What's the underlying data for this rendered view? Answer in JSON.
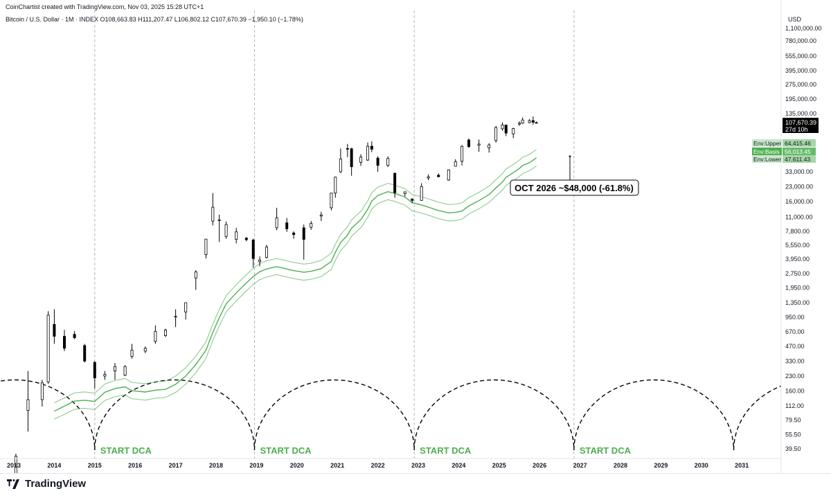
{
  "header": {
    "credit": "CoinChartist created with TradingView.com, Nov 03, 2025 15:28 UTC+1",
    "symbol_line": "Bitcoin / U.S. Dollar · 1M · INDEX  O108,663.83  H111,207.47  L106,802.12  C107,670.39  −1,950.10 (−1.78%)"
  },
  "watermark": {
    "text": "TradingView"
  },
  "chart_data": {
    "type": "candlestick",
    "currency_label": "USD",
    "price_scale": "log",
    "y_tick_labels": [
      "1,100,000.00",
      "780,000.00",
      "555,000.00",
      "395,000.00",
      "275,000.00",
      "195,000.00",
      "135,000.00",
      "33,000.00",
      "23,000.00",
      "16,000.00",
      "11,000.00",
      "7,800.00",
      "5,550.00",
      "3,950.00",
      "2,750.00",
      "1,950.00",
      "1,350.00",
      "950.00",
      "670.00",
      "470.00",
      "330.00",
      "230.00",
      "160.00",
      "112.00",
      "79.50",
      "55.50",
      "39.50"
    ],
    "x_tick_labels": [
      "2013",
      "2014",
      "2015",
      "2016",
      "2017",
      "2018",
      "2019",
      "2020",
      "2021",
      "2022",
      "2023",
      "2024",
      "2025",
      "2026",
      "2027",
      "2028",
      "2029",
      "2030",
      "2031"
    ],
    "last_price": {
      "value": "107,670.39",
      "countdown": "27d 10h"
    },
    "envelope": {
      "upper": {
        "name": "Env:Upper",
        "value": "64,415.46"
      },
      "basis": {
        "name": "Env:Basis",
        "value": "56,013.45"
      },
      "lower": {
        "name": "Env:Lower",
        "value": "47,611.43"
      }
    },
    "series": [
      {
        "x": 2013.05,
        "o": 14,
        "h": 35,
        "l": 13,
        "c": 33
      },
      {
        "x": 2013.35,
        "o": 100,
        "h": 260,
        "l": 60,
        "c": 130
      },
      {
        "x": 2013.7,
        "o": 130,
        "h": 210,
        "l": 110,
        "c": 195
      },
      {
        "x": 2013.85,
        "o": 200,
        "h": 1100,
        "l": 190,
        "c": 1000
      },
      {
        "x": 2014.0,
        "o": 800,
        "h": 1150,
        "l": 500,
        "c": 600
      },
      {
        "x": 2014.25,
        "o": 600,
        "h": 700,
        "l": 420,
        "c": 450
      },
      {
        "x": 2014.5,
        "o": 630,
        "h": 680,
        "l": 560,
        "c": 580
      },
      {
        "x": 2014.75,
        "o": 480,
        "h": 500,
        "l": 320,
        "c": 330
      },
      {
        "x": 2015.0,
        "o": 320,
        "h": 330,
        "l": 170,
        "c": 220
      },
      {
        "x": 2015.25,
        "o": 230,
        "h": 260,
        "l": 210,
        "c": 240
      },
      {
        "x": 2015.5,
        "o": 260,
        "h": 315,
        "l": 210,
        "c": 290
      },
      {
        "x": 2015.75,
        "o": 235,
        "h": 300,
        "l": 230,
        "c": 290
      },
      {
        "x": 2015.92,
        "o": 370,
        "h": 500,
        "l": 350,
        "c": 430
      },
      {
        "x": 2016.25,
        "o": 420,
        "h": 470,
        "l": 400,
        "c": 450
      },
      {
        "x": 2016.5,
        "o": 530,
        "h": 780,
        "l": 500,
        "c": 675
      },
      {
        "x": 2016.75,
        "o": 610,
        "h": 720,
        "l": 590,
        "c": 700
      },
      {
        "x": 2017.0,
        "o": 965,
        "h": 1150,
        "l": 750,
        "c": 970
      },
      {
        "x": 2017.25,
        "o": 1080,
        "h": 1350,
        "l": 900,
        "c": 1350
      },
      {
        "x": 2017.5,
        "o": 2480,
        "h": 3000,
        "l": 1850,
        "c": 2875
      },
      {
        "x": 2017.75,
        "o": 4400,
        "h": 6400,
        "l": 4000,
        "c": 6450
      },
      {
        "x": 2017.92,
        "o": 10000,
        "h": 19700,
        "l": 9000,
        "c": 14000
      },
      {
        "x": 2018.08,
        "o": 10300,
        "h": 11700,
        "l": 6000,
        "c": 10300
      },
      {
        "x": 2018.25,
        "o": 6900,
        "h": 9900,
        "l": 6500,
        "c": 9200
      },
      {
        "x": 2018.5,
        "o": 6400,
        "h": 8500,
        "l": 5800,
        "c": 7700
      },
      {
        "x": 2018.75,
        "o": 6600,
        "h": 6800,
        "l": 6100,
        "c": 6350
      },
      {
        "x": 2018.92,
        "o": 6300,
        "h": 6500,
        "l": 3200,
        "c": 4000
      },
      {
        "x": 2019.08,
        "o": 3700,
        "h": 4200,
        "l": 3300,
        "c": 3850
      },
      {
        "x": 2019.25,
        "o": 4100,
        "h": 5600,
        "l": 4000,
        "c": 5300
      },
      {
        "x": 2019.5,
        "o": 8500,
        "h": 13800,
        "l": 8000,
        "c": 10800
      },
      {
        "x": 2019.75,
        "o": 9600,
        "h": 10800,
        "l": 7700,
        "c": 8300
      },
      {
        "x": 2019.92,
        "o": 7500,
        "h": 7800,
        "l": 6500,
        "c": 7200
      },
      {
        "x": 2020.17,
        "o": 8500,
        "h": 9200,
        "l": 3900,
        "c": 6400
      },
      {
        "x": 2020.35,
        "o": 8600,
        "h": 10000,
        "l": 8100,
        "c": 9450
      },
      {
        "x": 2020.6,
        "o": 11300,
        "h": 12500,
        "l": 10000,
        "c": 11600
      },
      {
        "x": 2020.85,
        "o": 13800,
        "h": 19800,
        "l": 13000,
        "c": 19700
      },
      {
        "x": 2020.95,
        "o": 19700,
        "h": 29300,
        "l": 17600,
        "c": 29000
      },
      {
        "x": 2021.08,
        "o": 33000,
        "h": 58000,
        "l": 32000,
        "c": 45000
      },
      {
        "x": 2021.25,
        "o": 58000,
        "h": 64800,
        "l": 47000,
        "c": 57700
      },
      {
        "x": 2021.35,
        "o": 57700,
        "h": 59000,
        "l": 30000,
        "c": 37300
      },
      {
        "x": 2021.58,
        "o": 41500,
        "h": 50500,
        "l": 38000,
        "c": 47100
      },
      {
        "x": 2021.75,
        "o": 43800,
        "h": 67000,
        "l": 43000,
        "c": 61300
      },
      {
        "x": 2021.85,
        "o": 61300,
        "h": 69000,
        "l": 53000,
        "c": 57000
      },
      {
        "x": 2022.0,
        "o": 46000,
        "h": 48000,
        "l": 33000,
        "c": 38500
      },
      {
        "x": 2022.25,
        "o": 38500,
        "h": 48000,
        "l": 37000,
        "c": 45500
      },
      {
        "x": 2022.42,
        "o": 31800,
        "h": 32400,
        "l": 17600,
        "c": 19900
      },
      {
        "x": 2022.67,
        "o": 19400,
        "h": 20500,
        "l": 18200,
        "c": 20300
      },
      {
        "x": 2022.85,
        "o": 17100,
        "h": 17300,
        "l": 15500,
        "c": 16500
      },
      {
        "x": 2023.08,
        "o": 16500,
        "h": 25000,
        "l": 16400,
        "c": 23100
      },
      {
        "x": 2023.25,
        "o": 28400,
        "h": 31000,
        "l": 26900,
        "c": 29200
      },
      {
        "x": 2023.5,
        "o": 30400,
        "h": 31800,
        "l": 29300,
        "c": 29200
      },
      {
        "x": 2023.75,
        "o": 27000,
        "h": 35000,
        "l": 26500,
        "c": 34600
      },
      {
        "x": 2023.92,
        "o": 37700,
        "h": 44700,
        "l": 37600,
        "c": 42200
      },
      {
        "x": 2024.08,
        "o": 42500,
        "h": 63000,
        "l": 38500,
        "c": 61100
      },
      {
        "x": 2024.25,
        "o": 71300,
        "h": 73800,
        "l": 59000,
        "c": 60600
      },
      {
        "x": 2024.5,
        "o": 62700,
        "h": 72000,
        "l": 53500,
        "c": 64600
      },
      {
        "x": 2024.75,
        "o": 58900,
        "h": 66000,
        "l": 52500,
        "c": 63300
      },
      {
        "x": 2024.92,
        "o": 70300,
        "h": 99800,
        "l": 66800,
        "c": 96400
      },
      {
        "x": 2025.08,
        "o": 93400,
        "h": 109300,
        "l": 89300,
        "c": 102400
      },
      {
        "x": 2025.17,
        "o": 102400,
        "h": 102800,
        "l": 78200,
        "c": 84300
      },
      {
        "x": 2025.35,
        "o": 82500,
        "h": 95800,
        "l": 74400,
        "c": 94200
      },
      {
        "x": 2025.5,
        "o": 104600,
        "h": 111900,
        "l": 100400,
        "c": 107100
      },
      {
        "x": 2025.58,
        "o": 107100,
        "h": 123200,
        "l": 105100,
        "c": 115700
      },
      {
        "x": 2025.75,
        "o": 108200,
        "h": 117900,
        "l": 107300,
        "c": 114000
      },
      {
        "x": 2025.84,
        "o": 114000,
        "h": 126200,
        "l": 103500,
        "c": 109600
      },
      {
        "x": 2025.92,
        "o": 108663.83,
        "h": 111207.47,
        "l": 106802.12,
        "c": 107670.39
      }
    ],
    "projection": {
      "label": "OCT 2026 ~$48,000 (-61.8%)",
      "x": 2026.75,
      "from": 107670,
      "to": 48000
    },
    "start_dca_label": "START DCA",
    "dca_years": [
      2015.0,
      2018.95,
      2022.9,
      2026.85
    ],
    "cycle_arcs": [
      [
        2011.05,
        2015.0
      ],
      [
        2015.0,
        2018.95
      ],
      [
        2018.95,
        2022.9
      ],
      [
        2022.9,
        2026.85
      ],
      [
        2026.85,
        2030.8
      ],
      [
        2030.8,
        2034.75
      ]
    ],
    "colors": {
      "up_body": "#ffffff",
      "down_body": "#000000",
      "candle_border": "#000000",
      "envelope": "#4caf50",
      "start_dca": "#4caf50",
      "axis_text": "#131722",
      "last_price_bg": "#000000"
    }
  }
}
